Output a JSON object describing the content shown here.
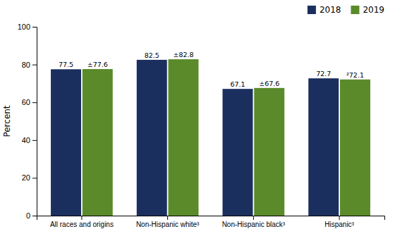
{
  "chart_data": {
    "type": "bar",
    "categories": [
      "All races and origins",
      "Non-Hispanic white³",
      "Non-Hispanic black³",
      "Hispanic³"
    ],
    "series": [
      {
        "name": "2018",
        "color": "#1b2f5e",
        "values": [
          77.5,
          82.5,
          67.1,
          72.7
        ]
      },
      {
        "name": "2019",
        "color": "#5a8a2a",
        "values": [
          77.6,
          82.8,
          67.6,
          72.1
        ],
        "value_labels": [
          "±77.6",
          "±82.8",
          "±67.6",
          "²72.1"
        ]
      }
    ],
    "ylabel": "Percent",
    "ylim": [
      0,
      100
    ],
    "yticks": [
      0,
      20,
      40,
      60,
      80,
      100
    ],
    "data_labels": true,
    "legend": "top-right",
    "grid": false
  }
}
